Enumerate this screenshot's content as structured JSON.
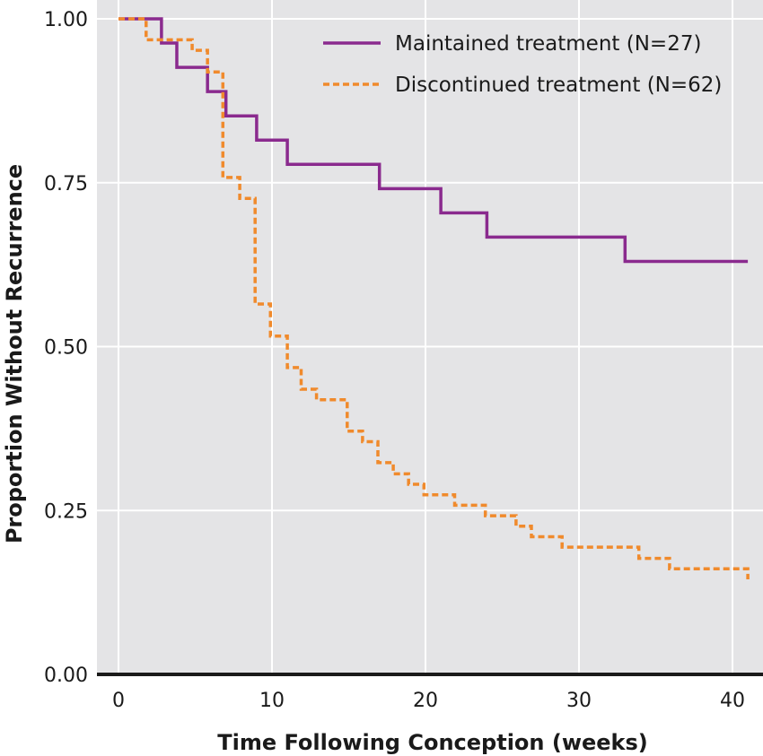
{
  "chart_data": {
    "type": "line",
    "step": true,
    "xlabel": "Time Following Conception (weeks)",
    "ylabel": "Proportion Without Recurrence",
    "xlim": [
      -1.5,
      42
    ],
    "ylim": [
      0,
      1.03
    ],
    "xticks": [
      0,
      10,
      20,
      30,
      40
    ],
    "xtick_labels": [
      "0",
      "10",
      "20",
      "30",
      "40"
    ],
    "yticks": [
      0,
      0.25,
      0.5,
      0.75,
      1.0
    ],
    "ytick_labels": [
      "0.00",
      "0.25",
      "0.50",
      "0.75",
      "1.00"
    ],
    "grid": true,
    "legend_position": "top-right",
    "colors": {
      "background": "#e4e4e6",
      "grid": "#ffffff",
      "axis": "#1a1a1a"
    },
    "series": [
      {
        "name": "Maintained treatment (N=27)",
        "color": "#8a2a8e",
        "dash": "solid",
        "x": [
          0,
          2.8,
          3.8,
          5.8,
          7,
          9,
          11,
          17,
          21,
          24,
          33,
          41
        ],
        "y": [
          1.0,
          0.963,
          0.926,
          0.889,
          0.852,
          0.815,
          0.778,
          0.741,
          0.704,
          0.667,
          0.63,
          0.63
        ]
      },
      {
        "name": "Discontinued treatment (N=62)",
        "color": "#f08a2c",
        "dash": "dashed",
        "x": [
          0,
          1.8,
          4.8,
          5.8,
          6.8,
          7.9,
          8.9,
          9.9,
          11,
          11.9,
          12.9,
          14.9,
          15.9,
          16.9,
          17.9,
          18.9,
          19.9,
          21.9,
          23.9,
          25.9,
          26.9,
          28.9,
          33.9,
          35.9,
          41
        ],
        "y": [
          1.0,
          0.968,
          0.952,
          0.919,
          0.758,
          0.726,
          0.565,
          0.516,
          0.468,
          0.435,
          0.419,
          0.371,
          0.355,
          0.323,
          0.306,
          0.29,
          0.274,
          0.258,
          0.242,
          0.226,
          0.21,
          0.194,
          0.177,
          0.161,
          0.145
        ]
      }
    ]
  }
}
